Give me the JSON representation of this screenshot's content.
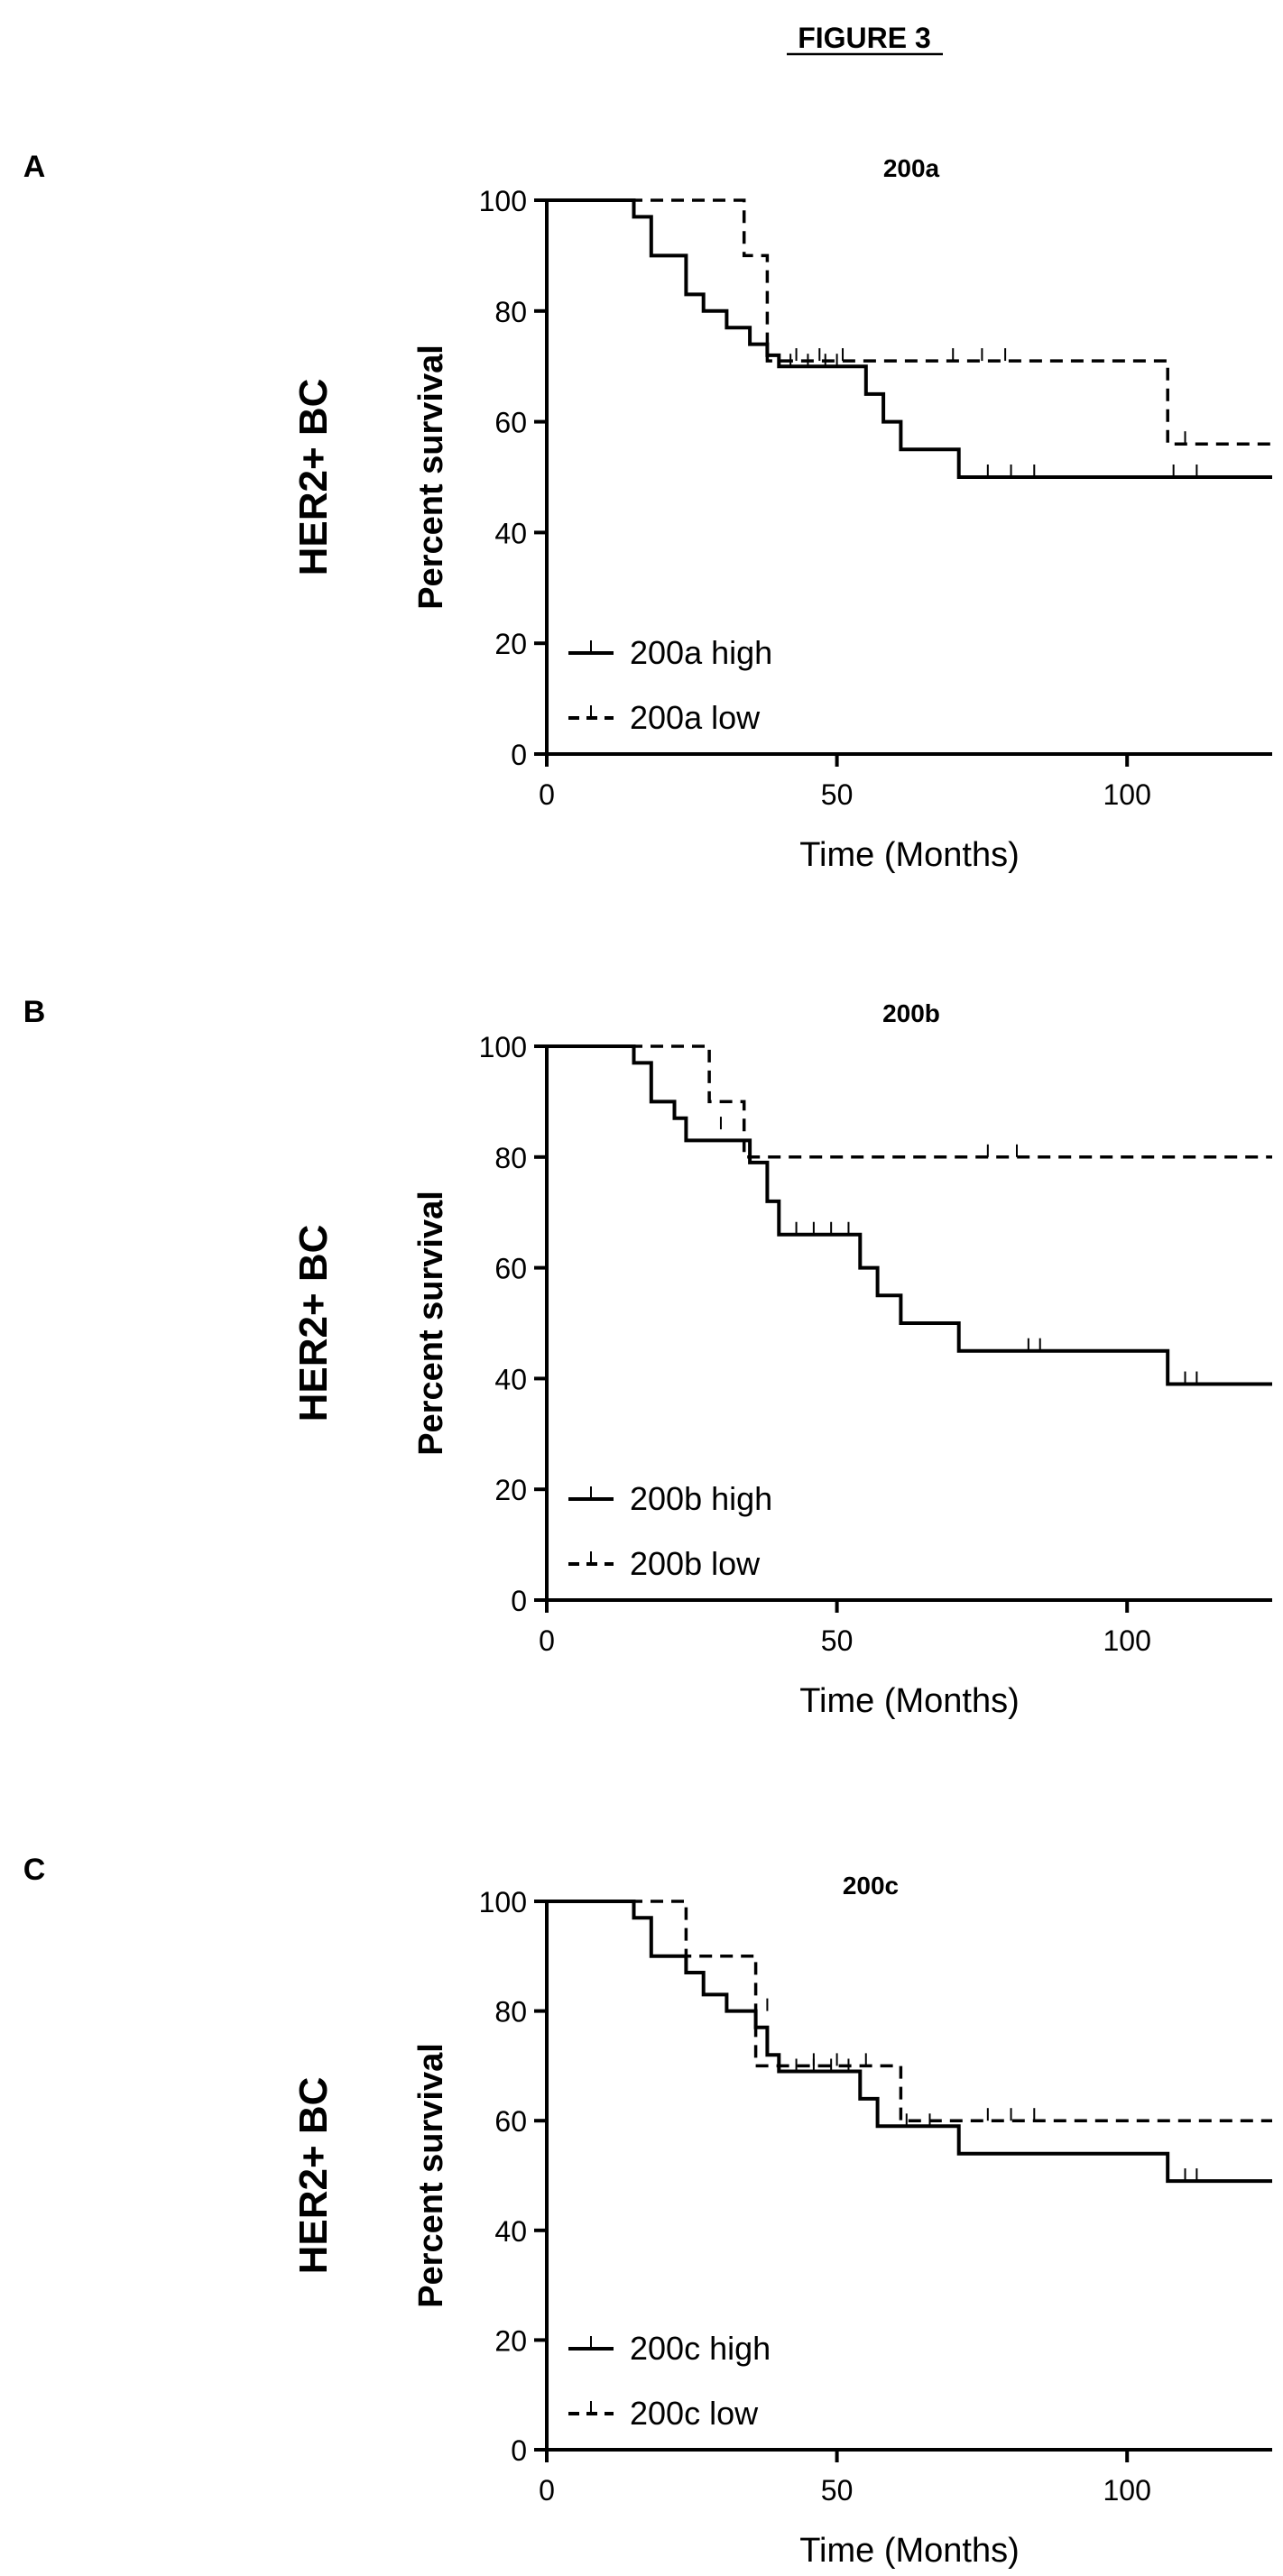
{
  "figure_title": "FIGURE 3",
  "chart_data": [
    {
      "panel_label": "A",
      "type": "line",
      "title": "200a",
      "side_label": "HER2+ BC",
      "xlabel": "Time (Months)",
      "ylabel": "Percent survival",
      "xlim": [
        0,
        125
      ],
      "ylim": [
        0,
        100
      ],
      "xticks": [
        0,
        50,
        100
      ],
      "yticks": [
        0,
        20,
        40,
        60,
        80,
        100
      ],
      "legend_position": "bottom-left",
      "series": [
        {
          "name": "200a high",
          "style": "solid",
          "steps": [
            [
              0,
              100
            ],
            [
              15,
              100
            ],
            [
              15,
              97
            ],
            [
              18,
              97
            ],
            [
              18,
              90
            ],
            [
              24,
              90
            ],
            [
              24,
              83
            ],
            [
              27,
              83
            ],
            [
              27,
              80
            ],
            [
              31,
              80
            ],
            [
              31,
              77
            ],
            [
              35,
              77
            ],
            [
              35,
              74
            ],
            [
              38,
              74
            ],
            [
              38,
              72
            ],
            [
              40,
              72
            ],
            [
              40,
              70
            ],
            [
              55,
              70
            ],
            [
              55,
              65
            ],
            [
              58,
              65
            ],
            [
              58,
              60
            ],
            [
              61,
              60
            ],
            [
              61,
              55
            ],
            [
              71,
              55
            ],
            [
              71,
              50
            ],
            [
              125,
              50
            ]
          ],
          "censored": [
            [
              42,
              70
            ],
            [
              45,
              70
            ],
            [
              48,
              70
            ],
            [
              50,
              70
            ],
            [
              76,
              50
            ],
            [
              80,
              50
            ],
            [
              84,
              50
            ],
            [
              108,
              50
            ],
            [
              112,
              50
            ]
          ]
        },
        {
          "name": "200a low",
          "style": "dashed",
          "steps": [
            [
              0,
              100
            ],
            [
              34,
              100
            ],
            [
              34,
              90
            ],
            [
              38,
              90
            ],
            [
              38,
              71
            ],
            [
              107,
              71
            ],
            [
              107,
              56
            ],
            [
              125,
              56
            ]
          ],
          "censored": [
            [
              43,
              71
            ],
            [
              47,
              71
            ],
            [
              51,
              71
            ],
            [
              70,
              71
            ],
            [
              75,
              71
            ],
            [
              79,
              71
            ],
            [
              110,
              56
            ]
          ]
        }
      ]
    },
    {
      "panel_label": "B",
      "type": "line",
      "title": "200b",
      "side_label": "HER2+ BC",
      "xlabel": "Time (Months)",
      "ylabel": "Percent survival",
      "xlim": [
        0,
        125
      ],
      "ylim": [
        0,
        100
      ],
      "xticks": [
        0,
        50,
        100
      ],
      "yticks": [
        0,
        20,
        40,
        60,
        80,
        100
      ],
      "legend_position": "bottom-left",
      "series": [
        {
          "name": "200b high",
          "style": "solid",
          "steps": [
            [
              0,
              100
            ],
            [
              15,
              100
            ],
            [
              15,
              97
            ],
            [
              18,
              97
            ],
            [
              18,
              90
            ],
            [
              22,
              90
            ],
            [
              22,
              87
            ],
            [
              24,
              87
            ],
            [
              24,
              83
            ],
            [
              35,
              83
            ],
            [
              35,
              79
            ],
            [
              38,
              79
            ],
            [
              38,
              72
            ],
            [
              40,
              72
            ],
            [
              40,
              66
            ],
            [
              54,
              66
            ],
            [
              54,
              60
            ],
            [
              57,
              60
            ],
            [
              57,
              55
            ],
            [
              61,
              55
            ],
            [
              61,
              50
            ],
            [
              71,
              50
            ],
            [
              71,
              45
            ],
            [
              107,
              45
            ],
            [
              107,
              39
            ],
            [
              125,
              39
            ]
          ],
          "censored": [
            [
              43,
              66
            ],
            [
              46,
              66
            ],
            [
              49,
              66
            ],
            [
              52,
              66
            ],
            [
              83,
              45
            ],
            [
              85,
              45
            ],
            [
              110,
              39
            ],
            [
              112,
              39
            ]
          ]
        },
        {
          "name": "200b low",
          "style": "dashed",
          "steps": [
            [
              0,
              100
            ],
            [
              28,
              100
            ],
            [
              28,
              90
            ],
            [
              34,
              90
            ],
            [
              34,
              80
            ],
            [
              125,
              80
            ]
          ],
          "censored": [
            [
              30,
              85
            ],
            [
              76,
              80
            ],
            [
              81,
              80
            ]
          ]
        }
      ]
    },
    {
      "panel_label": "C",
      "type": "line",
      "title": "200c",
      "side_label": "HER2+ BC",
      "xlabel": "Time (Months)",
      "ylabel": "Percent survival",
      "xlim": [
        0,
        125
      ],
      "ylim": [
        0,
        100
      ],
      "xticks": [
        0,
        50,
        100
      ],
      "yticks": [
        0,
        20,
        40,
        60,
        80,
        100
      ],
      "legend_position": "bottom-left",
      "series": [
        {
          "name": "200c high",
          "style": "solid",
          "steps": [
            [
              0,
              100
            ],
            [
              15,
              100
            ],
            [
              15,
              97
            ],
            [
              18,
              97
            ],
            [
              18,
              90
            ],
            [
              24,
              90
            ],
            [
              24,
              87
            ],
            [
              27,
              87
            ],
            [
              27,
              83
            ],
            [
              31,
              83
            ],
            [
              31,
              80
            ],
            [
              36,
              80
            ],
            [
              36,
              77
            ],
            [
              38,
              77
            ],
            [
              38,
              72
            ],
            [
              40,
              72
            ],
            [
              40,
              69
            ],
            [
              54,
              69
            ],
            [
              54,
              64
            ],
            [
              57,
              64
            ],
            [
              57,
              59
            ],
            [
              71,
              59
            ],
            [
              71,
              54
            ],
            [
              107,
              54
            ],
            [
              107,
              49
            ],
            [
              125,
              49
            ]
          ],
          "censored": [
            [
              43,
              69
            ],
            [
              46,
              69
            ],
            [
              49,
              69
            ],
            [
              52,
              69
            ],
            [
              62,
              59
            ],
            [
              66,
              59
            ],
            [
              110,
              49
            ],
            [
              112,
              49
            ]
          ]
        },
        {
          "name": "200c low",
          "style": "dashed",
          "steps": [
            [
              0,
              100
            ],
            [
              24,
              100
            ],
            [
              24,
              90
            ],
            [
              36,
              90
            ],
            [
              36,
              70
            ],
            [
              61,
              70
            ],
            [
              61,
              60
            ],
            [
              125,
              60
            ]
          ],
          "censored": [
            [
              38,
              80
            ],
            [
              46,
              70
            ],
            [
              50,
              70
            ],
            [
              55,
              70
            ],
            [
              76,
              60
            ],
            [
              80,
              60
            ],
            [
              84,
              60
            ]
          ]
        }
      ]
    }
  ]
}
